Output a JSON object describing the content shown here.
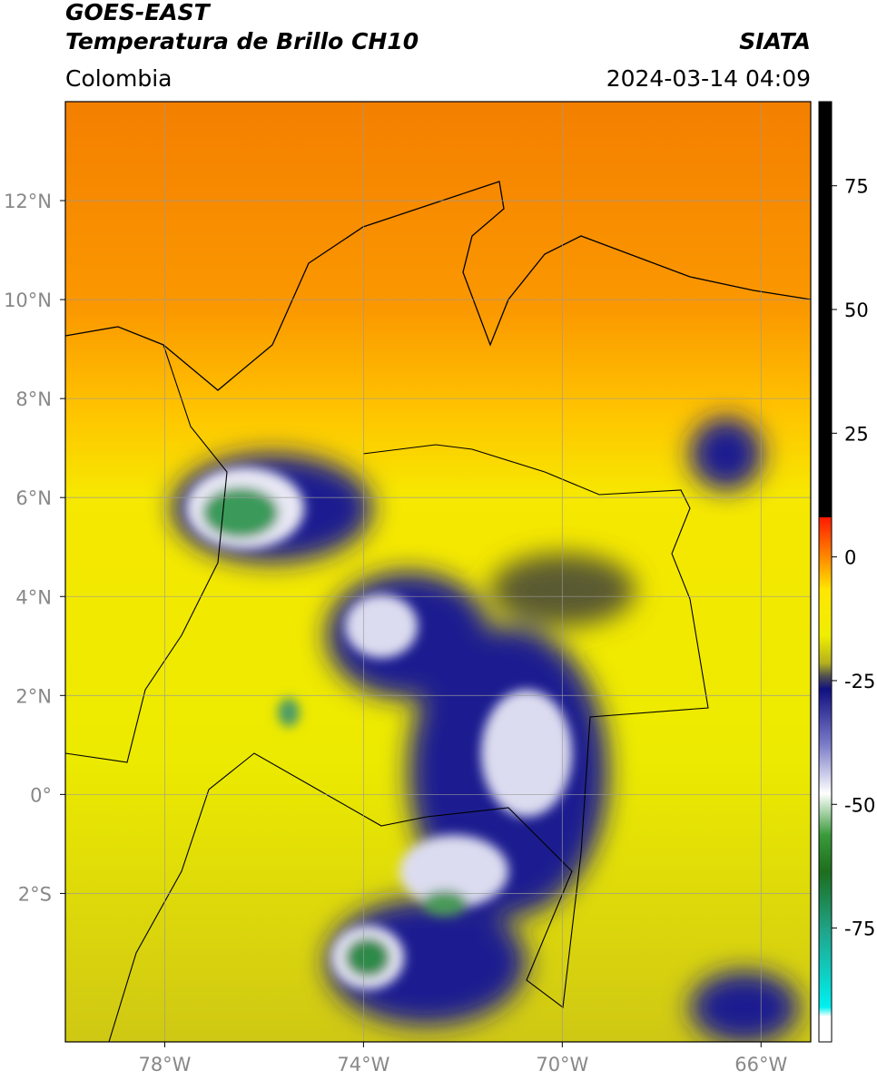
{
  "header": {
    "title": "GOES-EAST",
    "subtitle": "Temperatura de Brillo CH10",
    "region": "Colombia",
    "source": "SIATA",
    "datetime": "2024-03-14 04:09"
  },
  "map": {
    "xlim": [
      -80,
      -65
    ],
    "ylim": [
      -5,
      14
    ],
    "xticks": [
      {
        "value": -78,
        "label": "78°W"
      },
      {
        "value": -74,
        "label": "74°W"
      },
      {
        "value": -70,
        "label": "70°W"
      },
      {
        "value": -66,
        "label": "66°W"
      }
    ],
    "yticks": [
      {
        "value": 12,
        "label": "12°N"
      },
      {
        "value": 10,
        "label": "10°N"
      },
      {
        "value": 8,
        "label": "8°N"
      },
      {
        "value": 6,
        "label": "6°N"
      },
      {
        "value": 4,
        "label": "4°N"
      },
      {
        "value": 2,
        "label": "2°N"
      },
      {
        "value": 0,
        "label": "0°"
      },
      {
        "value": -2,
        "label": "2°S"
      }
    ],
    "grid": true
  },
  "colorbar": {
    "lim": [
      -98,
      92
    ],
    "ticks": [
      75,
      50,
      25,
      0,
      -25,
      -50,
      -75
    ]
  }
}
